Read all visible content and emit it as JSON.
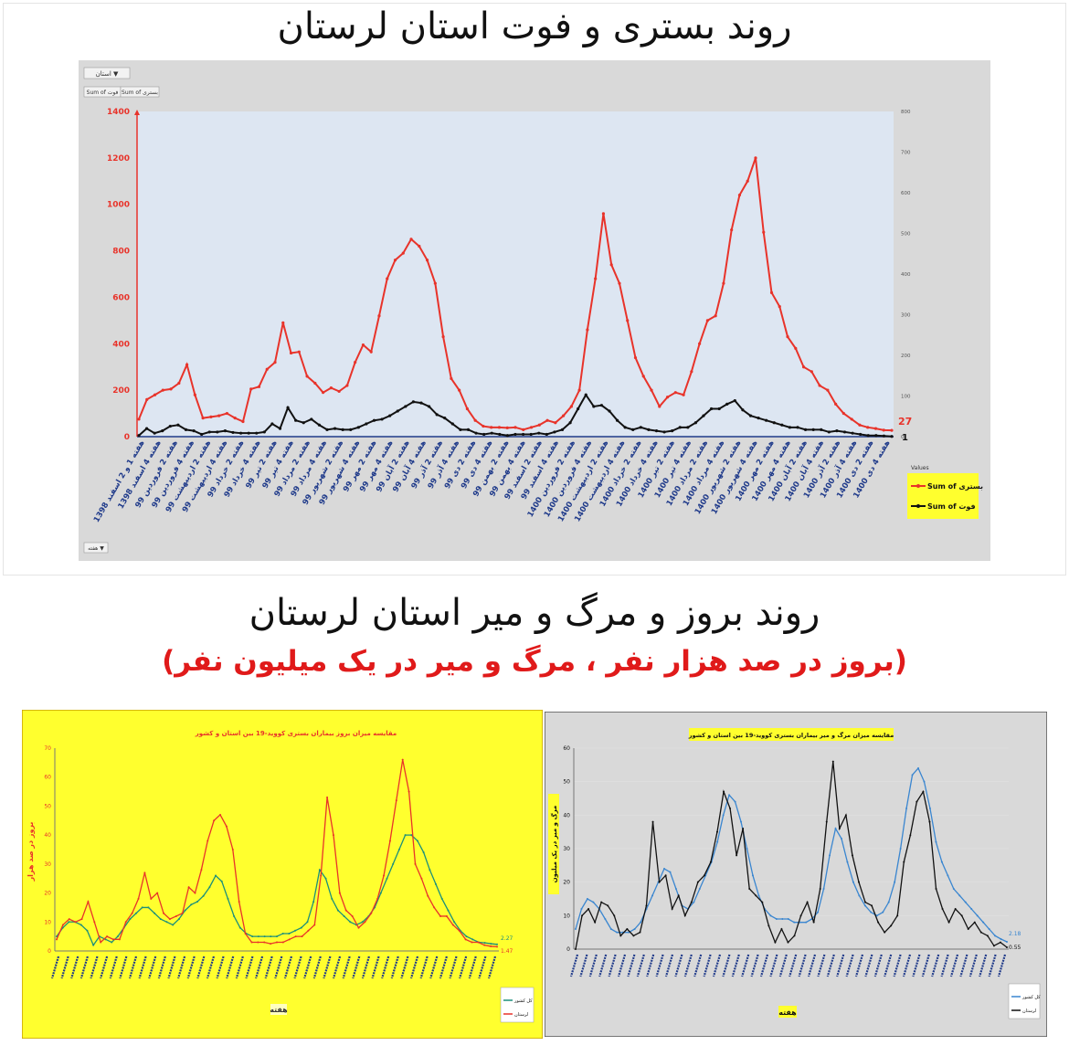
{
  "colors": {
    "red": "#e8332a",
    "black": "#111111",
    "blue": "#3a86d0",
    "green": "#1c8f7a",
    "yellow": "#ffff2e",
    "grey": "#d9d9d9",
    "plot_bg": "#dde6f2"
  },
  "top": {
    "title": "روند بستری و فوت استان لرستان",
    "filter_label": "استان ▼",
    "field_buttons": [
      "Sum of فوت",
      "Sum of بستری"
    ],
    "bottom_button": "هفته ▼",
    "legend_title": "Values",
    "legend_items": [
      "Sum of بستری",
      "Sum of فوت"
    ],
    "end_label_left": "27",
    "end_label_right": "1"
  },
  "bottom": {
    "title": "روند بروز و مرگ و میر استان لرستان",
    "subtitle": "(بروز در صد هزار نفر ، مرگ و میر در یک میلیون نفر)"
  },
  "chart_data": [
    {
      "type": "line",
      "title": "",
      "x_labels": [
        "هفته 1 و 2 اسفند 1398",
        "هفته 4 اسفند 1398",
        "هفته 2 فروردین 99",
        "هفته 4 فروردین 99",
        "هفته 2 اردیبهشت 99",
        "هفته 4 اردیبهشت 99",
        "هفته 2 خرداد 99",
        "هفته 4 خرداد 99",
        "هفته 2 تیر 99",
        "هفته 4 تیر 99",
        "هفته 2 مرداد 99",
        "هفته 4 مرداد 99",
        "هفته 2 شهریور 99",
        "هفته 4 شهریور 99",
        "هفته 2 مهر 99",
        "هفته 4 مهر 99",
        "هفته 2 آبان 99",
        "هفته 4 آبان 99",
        "هفته 2 آذر 99",
        "هفته 4 آذر 99",
        "هفته 2 دی 99",
        "هفته 4 دی 99",
        "هفته 2 بهمن 99",
        "هفته 4 بهمن 99",
        "هفته 2 اسفند 99",
        "هفته 4 اسفند 99",
        "هفته 2 فروردین 1400",
        "هفته 4 فروردین 1400",
        "هفته 2 اردیبهشت 1400",
        "هفته 4 اردیبهشت 1400",
        "هفته 2 خرداد 1400",
        "هفته 4 خرداد 1400",
        "هفته 2 تیر 1400",
        "هفته 4 تیر 1400",
        "هفته 2 مرداد 1400",
        "هفته 4 مرداد 1400",
        "هفته 2 شهریور 1400",
        "هفته 4 شهریور 1400",
        "هفته 2 مهر 1400",
        "هفته 4 مهر 1400",
        "هفته 2 آبان 1400",
        "هفته 4 آبان 1400",
        "هفته 2 آذر 1400",
        "هفته 4 آذر 1400",
        "هفته 2 دی 1400",
        "هفته 4 دی 1400"
      ],
      "y_left_ticks": [
        0,
        200,
        400,
        600,
        800,
        1000,
        1200,
        1400
      ],
      "y_right_ticks": [
        0,
        100,
        200,
        300,
        400,
        500,
        600,
        700,
        800
      ],
      "ylim_left": [
        0,
        1400
      ],
      "ylim_right": [
        0,
        800
      ],
      "series": [
        {
          "name": "Sum of بستری",
          "axis": "left",
          "color": "#e8332a",
          "values": [
            75,
            160,
            180,
            200,
            205,
            230,
            310,
            180,
            80,
            85,
            90,
            100,
            80,
            65,
            205,
            215,
            290,
            320,
            490,
            360,
            365,
            260,
            230,
            190,
            210,
            195,
            220,
            320,
            395,
            365,
            520,
            680,
            760,
            790,
            850,
            820,
            760,
            660,
            430,
            250,
            200,
            120,
            70,
            45,
            40,
            40,
            38,
            40,
            30,
            40,
            50,
            70,
            60,
            90,
            130,
            200,
            460,
            680,
            960,
            740,
            660,
            500,
            340,
            260,
            200,
            130,
            170,
            190,
            180,
            280,
            400,
            500,
            520,
            660,
            890,
            1040,
            1100,
            1200,
            880,
            620,
            560,
            430,
            380,
            300,
            280,
            220,
            200,
            140,
            100,
            75,
            50,
            40,
            35,
            28,
            27
          ]
        },
        {
          "name": "Sum of فوت",
          "axis": "left",
          "color": "#111111",
          "values": [
            5,
            35,
            15,
            25,
            45,
            50,
            30,
            25,
            10,
            20,
            20,
            25,
            18,
            15,
            15,
            15,
            20,
            55,
            35,
            125,
            70,
            60,
            75,
            50,
            30,
            35,
            30,
            30,
            40,
            55,
            70,
            75,
            90,
            110,
            130,
            150,
            145,
            130,
            95,
            80,
            55,
            30,
            30,
            15,
            10,
            15,
            10,
            5,
            10,
            10,
            10,
            15,
            10,
            20,
            30,
            60,
            120,
            180,
            130,
            135,
            110,
            70,
            40,
            30,
            40,
            30,
            25,
            20,
            25,
            40,
            40,
            60,
            90,
            120,
            120,
            140,
            155,
            115,
            90,
            80,
            70,
            60,
            50,
            40,
            40,
            30,
            30,
            30,
            20,
            25,
            20,
            15,
            10,
            5,
            5,
            3,
            1
          ]
        }
      ]
    },
    {
      "type": "line",
      "title": "مقایسه میزان بروز بیماران بستری کووید-19 بین استان و کشور",
      "ylabel": "بروز در صد هزار",
      "xlabel": "هفته",
      "ylim": [
        0,
        70
      ],
      "y_ticks": [
        0,
        10,
        20,
        30,
        40,
        50,
        60,
        70
      ],
      "end_labels": [
        "2.27",
        "1.47"
      ],
      "series": [
        {
          "name": "کل کشور",
          "color": "#1c8f7a",
          "values": [
            5,
            8,
            10,
            10,
            9,
            7,
            2,
            5,
            4,
            3,
            5,
            8,
            11,
            13,
            15,
            15,
            13,
            11,
            10,
            9,
            11,
            14,
            16,
            17,
            19,
            22,
            26,
            24,
            18,
            12,
            8,
            6,
            5,
            5,
            5,
            5,
            5,
            6,
            6,
            7,
            8,
            10,
            17,
            28,
            25,
            18,
            14,
            12,
            10,
            9,
            10,
            12,
            15,
            20,
            25,
            30,
            35,
            40,
            40,
            38,
            34,
            28,
            23,
            18,
            14,
            10,
            7,
            5,
            4,
            3,
            2.8,
            2.5,
            2.27
          ]
        },
        {
          "name": "لرستان",
          "color": "#e8332a",
          "values": [
            4,
            9,
            11,
            10,
            11,
            17,
            10,
            3,
            5,
            4,
            4,
            10,
            13,
            18,
            27,
            18,
            20,
            13,
            11,
            12,
            13,
            22,
            20,
            28,
            38,
            45,
            47,
            43,
            35,
            17,
            6,
            3,
            3,
            3,
            2.5,
            3,
            3,
            4,
            5,
            5,
            7,
            9,
            26,
            53,
            40,
            20,
            14,
            12,
            8,
            10,
            13,
            18,
            26,
            38,
            52,
            66,
            55,
            30,
            25,
            19,
            15,
            12,
            12,
            9,
            7,
            4,
            3,
            3,
            2,
            1.6,
            1.47
          ]
        }
      ]
    },
    {
      "type": "line",
      "title": "مقایسه میزان مرگ و میر بیماران بستری کووید-19 بین استان و کشور",
      "ylabel": "مرگ و میر در یک میلیون",
      "xlabel": "هفته",
      "ylim": [
        0,
        60
      ],
      "y_ticks": [
        0,
        10,
        20,
        30,
        40,
        50,
        60
      ],
      "end_labels": [
        "2.18",
        "0.55"
      ],
      "series": [
        {
          "name": "کل کشور",
          "color": "#3a86d0",
          "values": [
            6,
            12,
            15,
            14,
            12,
            9,
            6,
            5,
            5,
            5,
            6,
            8,
            12,
            16,
            20,
            24,
            23,
            18,
            13,
            12,
            14,
            18,
            22,
            26,
            32,
            40,
            46,
            44,
            38,
            30,
            22,
            16,
            12,
            10,
            9,
            9,
            9,
            8,
            8,
            8,
            9,
            11,
            18,
            28,
            36,
            33,
            26,
            20,
            16,
            13,
            11,
            10,
            11,
            14,
            20,
            30,
            42,
            52,
            54,
            50,
            42,
            32,
            26,
            22,
            18,
            16,
            14,
            12,
            10,
            8,
            6,
            4,
            3,
            2.18
          ]
        },
        {
          "name": "لرستان",
          "color": "#111111",
          "values": [
            0,
            10,
            12,
            8,
            14,
            13,
            10,
            4,
            6,
            4,
            5,
            13,
            38,
            20,
            22,
            12,
            16,
            10,
            14,
            20,
            22,
            26,
            35,
            47,
            42,
            28,
            36,
            18,
            16,
            14,
            7,
            2,
            6,
            2,
            4,
            10,
            14,
            8,
            18,
            38,
            56,
            36,
            40,
            28,
            20,
            14,
            13,
            8,
            5,
            7,
            10,
            26,
            34,
            44,
            47,
            38,
            18,
            12,
            8,
            12,
            10,
            6,
            8,
            5,
            4,
            1,
            2,
            0.55
          ]
        }
      ]
    }
  ]
}
